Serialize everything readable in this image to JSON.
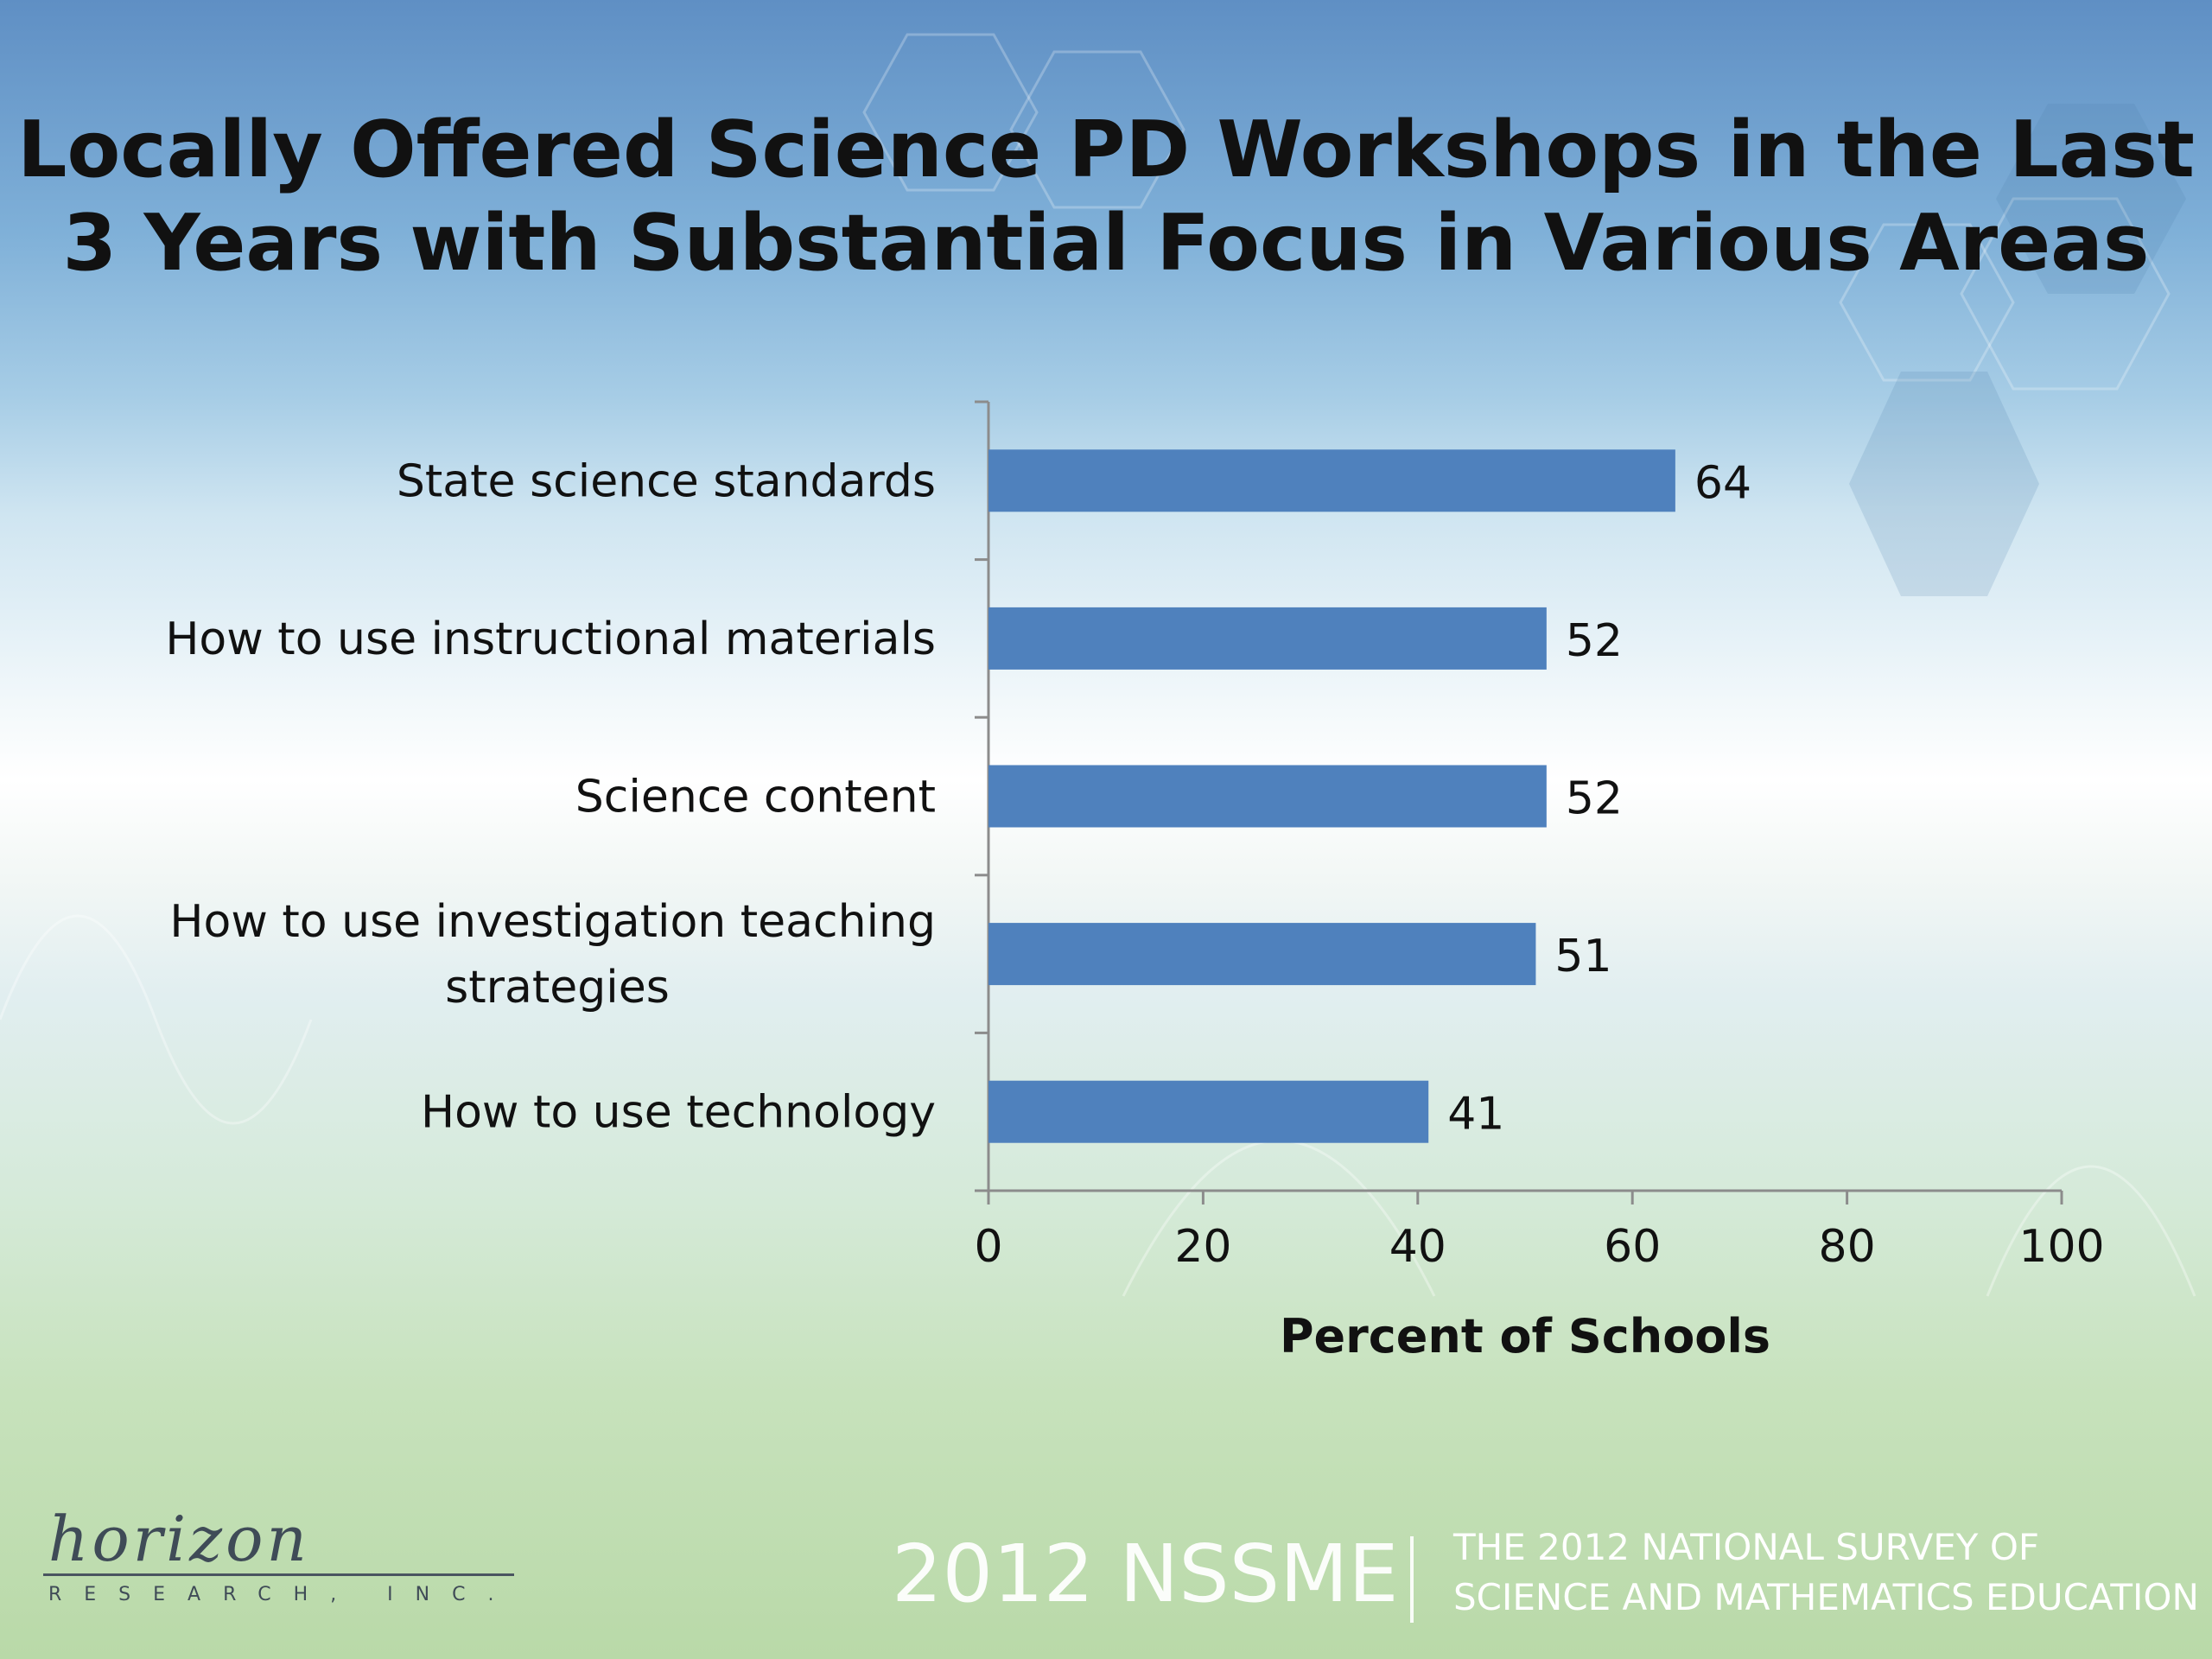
{
  "title_lines": [
    "Locally Offered Science PD Workshops in the Last",
    "3 Years with Substantial Focus in Various Areas"
  ],
  "colors": {
    "bar": "#4f81bd",
    "axis": "#8c8c8c",
    "text": "#111111"
  },
  "chart_data": {
    "type": "bar",
    "orientation": "horizontal",
    "categories": [
      [
        "State science standards"
      ],
      [
        "How to use instructional materials"
      ],
      [
        "Science content"
      ],
      [
        "How to use investigation teaching",
        "strategies"
      ],
      [
        "How to use technology"
      ]
    ],
    "values": [
      64,
      52,
      52,
      51,
      41
    ],
    "data_labels": [
      "64",
      "52",
      "52",
      "51",
      "41"
    ],
    "xlabel": "Percent of Schools",
    "xlim": [
      0,
      100
    ],
    "xticks": [
      "0",
      "20",
      "40",
      "60",
      "80",
      "100"
    ],
    "grid": false,
    "legend": "none"
  },
  "footer": {
    "logo_script": "horizon",
    "logo_sub": "RESEARCH, INC.",
    "brand": "2012 NSSME",
    "survey_lines": [
      "THE 2012 NATIONAL SURVEY OF",
      "SCIENCE AND MATHEMATICS EDUCATION"
    ]
  }
}
